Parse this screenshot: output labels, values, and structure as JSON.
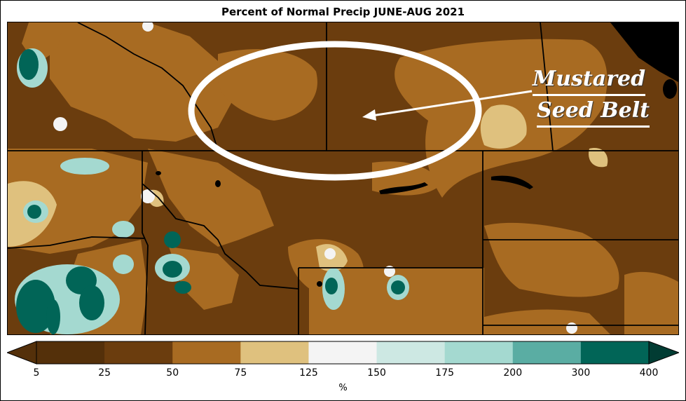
{
  "title": "Percent of Normal Precip JUNE-AUG 2021",
  "annotation": {
    "line1": "Mustared",
    "line2": "Seed Belt"
  },
  "colorbar": {
    "unit": "%",
    "ticks": [
      "5",
      "25",
      "50",
      "75",
      "125",
      "150",
      "175",
      "200",
      "300",
      "400"
    ],
    "colors": [
      "#54300a",
      "#6b3d0e",
      "#a86b22",
      "#dfc17e",
      "#f4f4f4",
      "#cde8e3",
      "#a4d9d0",
      "#5aada3",
      "#016557",
      "#013c33"
    ]
  },
  "map_colors": {
    "very_dry": "#6b3d0e",
    "dry": "#a86b22",
    "moderate": "#dfc17e",
    "near_normal": "#f4f4f4",
    "wet": "#a4d9d0",
    "very_wet": "#016557",
    "water": "#000000",
    "boundary": "#000000",
    "highlight": "#ffffff"
  }
}
